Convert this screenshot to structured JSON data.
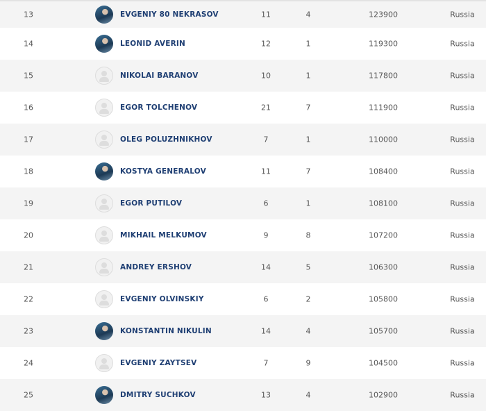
{
  "rows": [
    {
      "rank": "13",
      "name": "EVGENIY 80 NEKRASOV",
      "col3": "11",
      "col4": "4",
      "points": "123900",
      "country": "Russia",
      "avatar": "photo"
    },
    {
      "rank": "14",
      "name": "LEONID AVERIN",
      "col3": "12",
      "col4": "1",
      "points": "119300",
      "country": "Russia",
      "avatar": "photo"
    },
    {
      "rank": "15",
      "name": "NIKOLAI BARANOV",
      "col3": "10",
      "col4": "1",
      "points": "117800",
      "country": "Russia",
      "avatar": "placeholder"
    },
    {
      "rank": "16",
      "name": "EGOR TOLCHENOV",
      "col3": "21",
      "col4": "7",
      "points": "111900",
      "country": "Russia",
      "avatar": "placeholder"
    },
    {
      "rank": "17",
      "name": "OLEG POLUZHNIKHOV",
      "col3": "7",
      "col4": "1",
      "points": "110000",
      "country": "Russia",
      "avatar": "placeholder"
    },
    {
      "rank": "18",
      "name": "KOSTYA GENERALOV",
      "col3": "11",
      "col4": "7",
      "points": "108400",
      "country": "Russia",
      "avatar": "photo"
    },
    {
      "rank": "19",
      "name": "EGOR PUTILOV",
      "col3": "6",
      "col4": "1",
      "points": "108100",
      "country": "Russia",
      "avatar": "placeholder"
    },
    {
      "rank": "20",
      "name": "MIKHAIL MELKUMOV",
      "col3": "9",
      "col4": "8",
      "points": "107200",
      "country": "Russia",
      "avatar": "placeholder"
    },
    {
      "rank": "21",
      "name": "ANDREY ERSHOV",
      "col3": "14",
      "col4": "5",
      "points": "106300",
      "country": "Russia",
      "avatar": "placeholder"
    },
    {
      "rank": "22",
      "name": "EVGENIY OLVINSKIY",
      "col3": "6",
      "col4": "2",
      "points": "105800",
      "country": "Russia",
      "avatar": "placeholder"
    },
    {
      "rank": "23",
      "name": "KONSTANTIN NIKULIN",
      "col3": "14",
      "col4": "4",
      "points": "105700",
      "country": "Russia",
      "avatar": "photo"
    },
    {
      "rank": "24",
      "name": "EVGENIY ZAYTSEV",
      "col3": "7",
      "col4": "9",
      "points": "104500",
      "country": "Russia",
      "avatar": "placeholder"
    },
    {
      "rank": "25",
      "name": "DMITRY SUCHKOV",
      "col3": "13",
      "col4": "4",
      "points": "102900",
      "country": "Russia",
      "avatar": "photo"
    }
  ]
}
